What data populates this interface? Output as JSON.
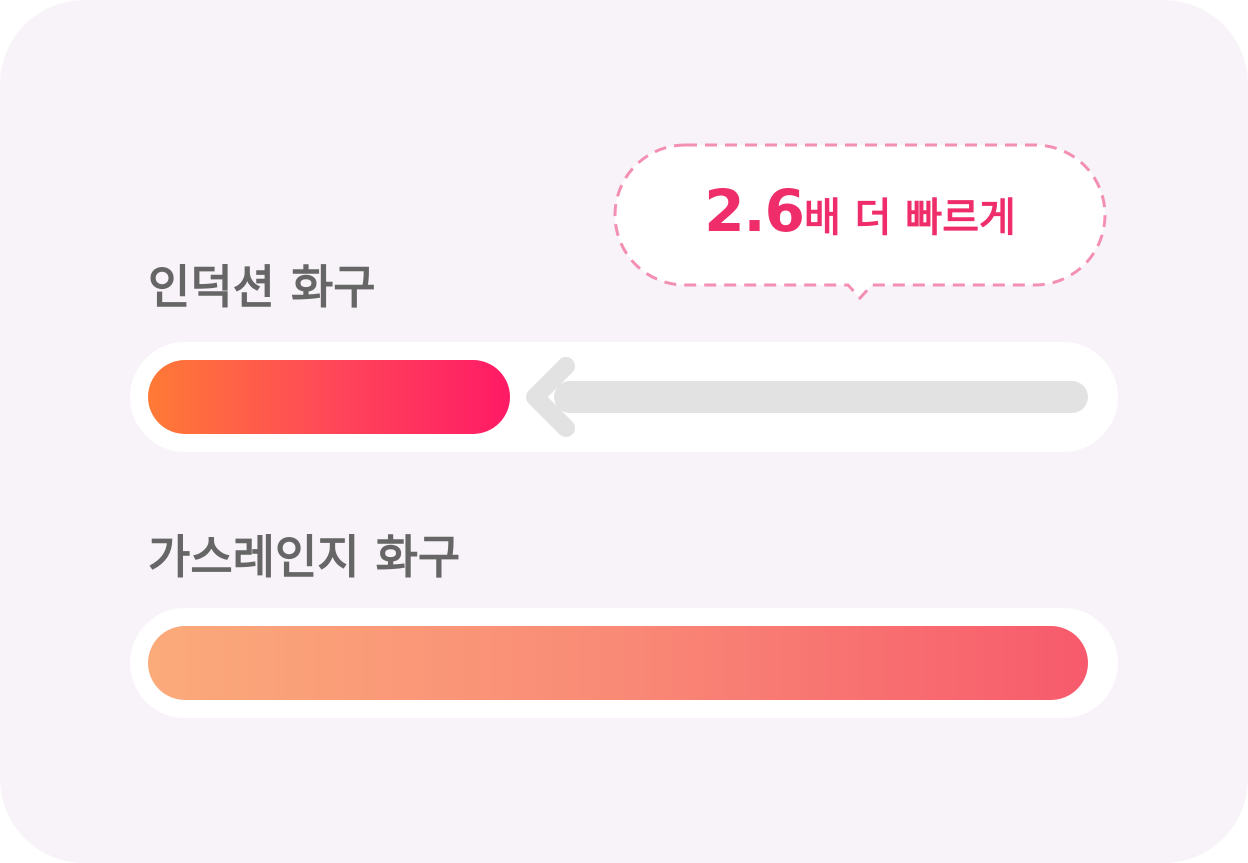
{
  "chart_data": {
    "type": "bar",
    "orientation": "horizontal",
    "categories": [
      "인덕션 화구",
      "가스레인지 화구"
    ],
    "values": [
      1,
      2.6
    ],
    "annotation": {
      "number": "2.6",
      "text": "배 더 빠르게"
    },
    "colors": {
      "induction_start": "#ff7a35",
      "induction_end": "#ff1a66",
      "gas_start": "#fbaa7a",
      "gas_end": "#f75a6c",
      "annotation_text": "#ee2d6a",
      "annotation_border": "#f48fb4",
      "arrow": "#e2e2e2"
    }
  }
}
